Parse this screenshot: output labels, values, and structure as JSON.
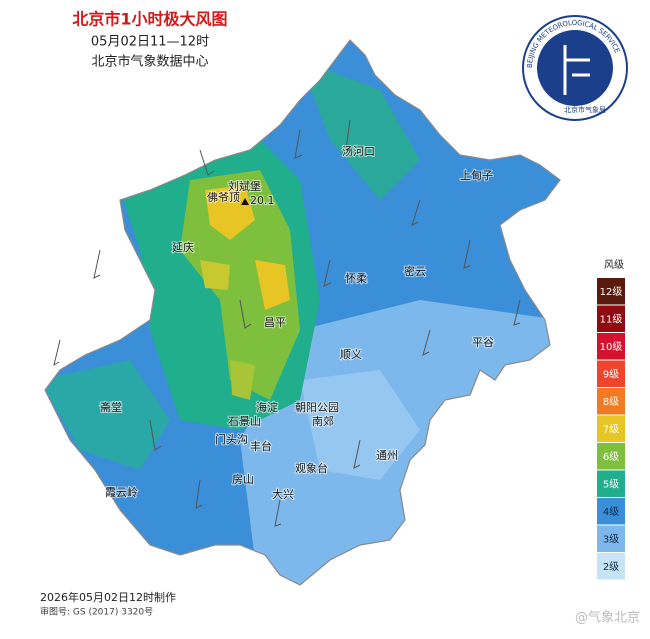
{
  "header": {
    "title": "北京市1小时极大风图",
    "time": "05月02日11—12时",
    "source": "北京市气象数据中心"
  },
  "logo": {
    "ring_text": "BEIJING METEOROLOGICAL SERVICE",
    "name": "北京市气象局"
  },
  "places": {
    "max_station": "刘斌堡",
    "max_value": "20.1",
    "foyeding": "佛爷顶",
    "tanghekou": "汤河口",
    "shangdianzi": "上甸子",
    "yanqing": "延庆",
    "huairou": "怀柔",
    "miyun": "密云",
    "changping": "昌平",
    "pinggu": "平谷",
    "shunyi": "顺义",
    "haidian": "海淀",
    "chaoyang_park": "朝阳公园",
    "nanjiao": "南郊",
    "shijingshan": "石景山",
    "mentougou": "门头沟",
    "fengtai": "丰台",
    "zhaitang": "斋堂",
    "xiayunling": "霞云岭",
    "fangshan": "房山",
    "daxing": "大兴",
    "tongzhou": "通州",
    "guanxiangtai": "观象台"
  },
  "legend": {
    "title": "风级",
    "items": [
      {
        "label": "12级",
        "color": "#5b1a0e"
      },
      {
        "label": "11级",
        "color": "#8e0c10"
      },
      {
        "label": "10级",
        "color": "#d4122e"
      },
      {
        "label": "9级",
        "color": "#f0442c"
      },
      {
        "label": "8级",
        "color": "#f27a22"
      },
      {
        "label": "7级",
        "color": "#e6c524"
      },
      {
        "label": "6级",
        "color": "#7fbf3e"
      },
      {
        "label": "5级",
        "color": "#20ae8c"
      },
      {
        "label": "4级",
        "color": "#3a8fd8"
      },
      {
        "label": "3级",
        "color": "#7cb8ec"
      },
      {
        "label": "2级",
        "color": "#c6e3f8"
      }
    ]
  },
  "footer": {
    "made": "2026年05月02日12时制作",
    "approval": "审图号: GS (2017) 3320号",
    "watermark": "@气象北京"
  }
}
